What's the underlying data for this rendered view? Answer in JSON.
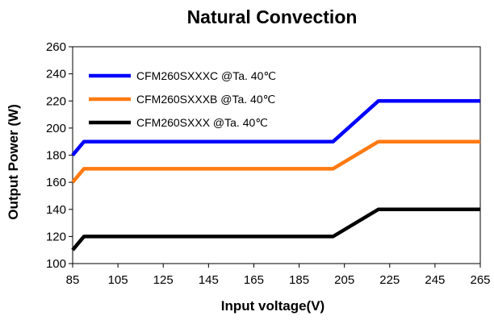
{
  "chart_data": {
    "type": "line",
    "title": "Natural Convection",
    "xlabel": "Input voltage(V)",
    "ylabel": "Output Power (W)",
    "xlim": [
      85,
      265
    ],
    "ylim": [
      100,
      260
    ],
    "xticks": [
      85,
      105,
      125,
      145,
      165,
      185,
      205,
      225,
      245,
      265
    ],
    "yticks": [
      100,
      120,
      140,
      160,
      180,
      200,
      220,
      240,
      260
    ],
    "grid": false,
    "legend_position": "top-left",
    "series": [
      {
        "name": "CFM260SXXXC @Ta. 40℃",
        "color": "#0000ff",
        "x": [
          85,
          90,
          200,
          220,
          265
        ],
        "y": [
          180,
          190,
          190,
          220,
          220
        ]
      },
      {
        "name": "CFM260SXXXB @Ta. 40℃",
        "color": "#ff7a12",
        "x": [
          85,
          90,
          200,
          220,
          265
        ],
        "y": [
          160,
          170,
          170,
          190,
          190
        ]
      },
      {
        "name": "CFM260SXXX @Ta. 40℃",
        "color": "#000000",
        "x": [
          85,
          90,
          200,
          220,
          265
        ],
        "y": [
          110,
          120,
          120,
          140,
          140
        ]
      }
    ]
  }
}
